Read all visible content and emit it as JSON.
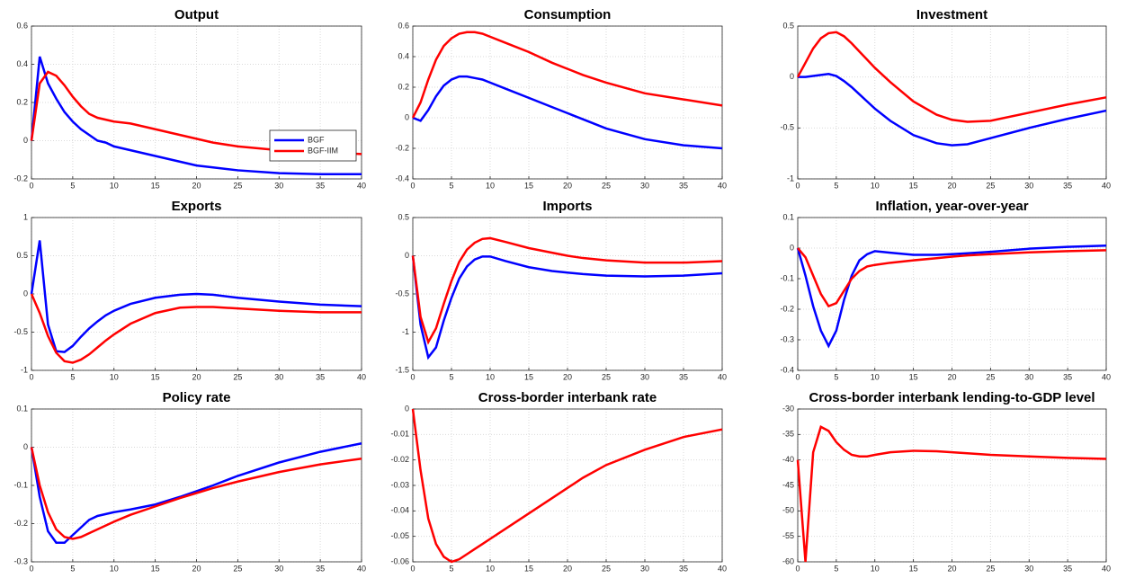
{
  "chart_data": [
    {
      "type": "line",
      "title": "Output",
      "legend": "lower right",
      "grid": true,
      "x": [
        0,
        1,
        2,
        3,
        4,
        5,
        6,
        7,
        8,
        9,
        10,
        12,
        15,
        18,
        20,
        22,
        25,
        30,
        35,
        40
      ],
      "xlim": [
        0,
        40
      ],
      "xticks": [
        0,
        5,
        10,
        15,
        20,
        25,
        30,
        35,
        40
      ],
      "ylim": [
        -0.2,
        0.6
      ],
      "yticks": [
        -0.2,
        0,
        0.2,
        0.4,
        0.6
      ],
      "series": [
        {
          "name": "BGF",
          "color": "#0000ff",
          "values": [
            0,
            0.44,
            0.3,
            0.22,
            0.15,
            0.1,
            0.06,
            0.03,
            0.0,
            -0.01,
            -0.03,
            -0.05,
            -0.08,
            -0.11,
            -0.13,
            -0.14,
            -0.155,
            -0.17,
            -0.175,
            -0.175
          ]
        },
        {
          "name": "BGF-IIM",
          "color": "#ff0000",
          "values": [
            0,
            0.3,
            0.36,
            0.34,
            0.29,
            0.23,
            0.18,
            0.14,
            0.12,
            0.11,
            0.1,
            0.09,
            0.06,
            0.03,
            0.01,
            -0.01,
            -0.03,
            -0.05,
            -0.06,
            -0.07
          ]
        }
      ]
    },
    {
      "type": "line",
      "title": "Consumption",
      "grid": true,
      "x": [
        0,
        1,
        2,
        3,
        4,
        5,
        6,
        7,
        8,
        9,
        10,
        12,
        15,
        18,
        20,
        22,
        25,
        30,
        35,
        40
      ],
      "xlim": [
        0,
        40
      ],
      "xticks": [
        0,
        5,
        10,
        15,
        20,
        25,
        30,
        35,
        40
      ],
      "ylim": [
        -0.4,
        0.6
      ],
      "yticks": [
        -0.4,
        -0.2,
        0,
        0.2,
        0.4,
        0.6
      ],
      "series": [
        {
          "color": "#0000ff",
          "values": [
            0,
            -0.02,
            0.05,
            0.14,
            0.21,
            0.25,
            0.27,
            0.27,
            0.26,
            0.25,
            0.23,
            0.19,
            0.13,
            0.07,
            0.03,
            -0.01,
            -0.07,
            -0.14,
            -0.18,
            -0.2
          ]
        },
        {
          "color": "#ff0000",
          "values": [
            0,
            0.1,
            0.25,
            0.38,
            0.47,
            0.52,
            0.55,
            0.56,
            0.56,
            0.55,
            0.53,
            0.49,
            0.43,
            0.36,
            0.32,
            0.28,
            0.23,
            0.16,
            0.12,
            0.08
          ]
        }
      ]
    },
    {
      "type": "line",
      "title": "Investment",
      "grid": true,
      "x": [
        0,
        1,
        2,
        3,
        4,
        5,
        6,
        7,
        8,
        9,
        10,
        12,
        15,
        18,
        20,
        22,
        25,
        30,
        35,
        40
      ],
      "xlim": [
        0,
        40
      ],
      "xticks": [
        0,
        5,
        10,
        15,
        20,
        25,
        30,
        35,
        40
      ],
      "ylim": [
        -1,
        0.5
      ],
      "yticks": [
        -1,
        -0.5,
        0,
        0.5
      ],
      "series": [
        {
          "color": "#0000ff",
          "values": [
            0,
            0,
            0.01,
            0.02,
            0.03,
            0.01,
            -0.04,
            -0.1,
            -0.17,
            -0.24,
            -0.31,
            -0.43,
            -0.57,
            -0.65,
            -0.67,
            -0.66,
            -0.6,
            -0.5,
            -0.41,
            -0.33
          ]
        },
        {
          "color": "#ff0000",
          "values": [
            0,
            0.14,
            0.28,
            0.38,
            0.43,
            0.44,
            0.4,
            0.33,
            0.25,
            0.17,
            0.09,
            -0.05,
            -0.24,
            -0.37,
            -0.42,
            -0.44,
            -0.43,
            -0.35,
            -0.27,
            -0.2
          ]
        }
      ]
    },
    {
      "type": "line",
      "title": "Exports",
      "grid": true,
      "x": [
        0,
        1,
        2,
        3,
        4,
        5,
        6,
        7,
        8,
        9,
        10,
        12,
        15,
        18,
        20,
        22,
        25,
        30,
        35,
        40
      ],
      "xlim": [
        0,
        40
      ],
      "xticks": [
        0,
        5,
        10,
        15,
        20,
        25,
        30,
        35,
        40
      ],
      "ylim": [
        -1,
        1
      ],
      "yticks": [
        -1,
        -0.5,
        0,
        0.5,
        1
      ],
      "series": [
        {
          "color": "#0000ff",
          "values": [
            0,
            0.7,
            -0.4,
            -0.75,
            -0.76,
            -0.68,
            -0.56,
            -0.45,
            -0.36,
            -0.28,
            -0.22,
            -0.13,
            -0.05,
            -0.01,
            0,
            -0.01,
            -0.05,
            -0.1,
            -0.14,
            -0.16
          ]
        },
        {
          "color": "#ff0000",
          "values": [
            0,
            -0.25,
            -0.55,
            -0.77,
            -0.88,
            -0.9,
            -0.86,
            -0.79,
            -0.7,
            -0.61,
            -0.53,
            -0.39,
            -0.25,
            -0.18,
            -0.17,
            -0.17,
            -0.19,
            -0.22,
            -0.24,
            -0.24
          ]
        }
      ]
    },
    {
      "type": "line",
      "title": "Imports",
      "grid": true,
      "x": [
        0,
        1,
        2,
        3,
        4,
        5,
        6,
        7,
        8,
        9,
        10,
        12,
        15,
        18,
        20,
        22,
        25,
        30,
        35,
        40
      ],
      "xlim": [
        0,
        40
      ],
      "xticks": [
        0,
        5,
        10,
        15,
        20,
        25,
        30,
        35,
        40
      ],
      "ylim": [
        -1.5,
        0.5
      ],
      "yticks": [
        -1.5,
        -1,
        -0.5,
        0,
        0.5
      ],
      "series": [
        {
          "color": "#0000ff",
          "values": [
            0,
            -0.9,
            -1.33,
            -1.2,
            -0.85,
            -0.55,
            -0.3,
            -0.14,
            -0.05,
            -0.01,
            -0.01,
            -0.07,
            -0.15,
            -0.2,
            -0.22,
            -0.24,
            -0.26,
            -0.27,
            -0.26,
            -0.23
          ]
        },
        {
          "color": "#ff0000",
          "values": [
            0,
            -0.8,
            -1.13,
            -0.95,
            -0.63,
            -0.33,
            -0.08,
            0.08,
            0.17,
            0.22,
            0.23,
            0.18,
            0.1,
            0.04,
            0.0,
            -0.03,
            -0.06,
            -0.09,
            -0.09,
            -0.07
          ]
        }
      ]
    },
    {
      "type": "line",
      "title": "Inflation, year-over-year",
      "grid": true,
      "x": [
        0,
        1,
        2,
        3,
        4,
        5,
        6,
        7,
        8,
        9,
        10,
        12,
        15,
        18,
        20,
        22,
        25,
        30,
        35,
        40
      ],
      "xlim": [
        0,
        40
      ],
      "xticks": [
        0,
        5,
        10,
        15,
        20,
        25,
        30,
        35,
        40
      ],
      "ylim": [
        -0.4,
        0.1
      ],
      "yticks": [
        -0.4,
        -0.3,
        -0.2,
        -0.1,
        0,
        0.1
      ],
      "series": [
        {
          "color": "#0000ff",
          "values": [
            0,
            -0.09,
            -0.19,
            -0.27,
            -0.32,
            -0.27,
            -0.17,
            -0.09,
            -0.04,
            -0.02,
            -0.01,
            -0.015,
            -0.022,
            -0.022,
            -0.02,
            -0.017,
            -0.012,
            -0.002,
            0.004,
            0.008
          ]
        },
        {
          "color": "#ff0000",
          "values": [
            0,
            -0.03,
            -0.09,
            -0.15,
            -0.19,
            -0.18,
            -0.14,
            -0.1,
            -0.075,
            -0.06,
            -0.055,
            -0.048,
            -0.04,
            -0.033,
            -0.028,
            -0.024,
            -0.02,
            -0.014,
            -0.01,
            -0.007
          ]
        }
      ]
    },
    {
      "type": "line",
      "title": "Policy rate",
      "grid": true,
      "x": [
        0,
        1,
        2,
        3,
        4,
        5,
        6,
        7,
        8,
        9,
        10,
        12,
        15,
        18,
        20,
        22,
        25,
        30,
        35,
        40
      ],
      "xlim": [
        0,
        40
      ],
      "xticks": [
        0,
        5,
        10,
        15,
        20,
        25,
        30,
        35,
        40
      ],
      "ylim": [
        -0.3,
        0.1
      ],
      "yticks": [
        -0.3,
        -0.2,
        -0.1,
        0,
        0.1
      ],
      "series": [
        {
          "color": "#0000ff",
          "values": [
            0,
            -0.13,
            -0.22,
            -0.25,
            -0.25,
            -0.23,
            -0.21,
            -0.19,
            -0.18,
            -0.175,
            -0.17,
            -0.163,
            -0.15,
            -0.13,
            -0.115,
            -0.1,
            -0.075,
            -0.04,
            -0.012,
            0.01
          ]
        },
        {
          "color": "#ff0000",
          "values": [
            0,
            -0.1,
            -0.17,
            -0.215,
            -0.235,
            -0.24,
            -0.235,
            -0.225,
            -0.215,
            -0.205,
            -0.195,
            -0.177,
            -0.155,
            -0.133,
            -0.12,
            -0.107,
            -0.09,
            -0.065,
            -0.045,
            -0.03
          ]
        }
      ]
    },
    {
      "type": "line",
      "title": "Cross-border interbank rate",
      "grid": true,
      "x": [
        0,
        1,
        2,
        3,
        4,
        5,
        6,
        7,
        8,
        9,
        10,
        12,
        15,
        18,
        20,
        22,
        25,
        30,
        35,
        40
      ],
      "xlim": [
        0,
        40
      ],
      "xticks": [
        0,
        5,
        10,
        15,
        20,
        25,
        30,
        35,
        40
      ],
      "ylim": [
        -0.06,
        0
      ],
      "yticks": [
        -0.06,
        -0.05,
        -0.04,
        -0.03,
        -0.02,
        -0.01,
        0
      ],
      "series": [
        {
          "color": "#ff0000",
          "values": [
            0,
            -0.024,
            -0.043,
            -0.053,
            -0.058,
            -0.06,
            -0.059,
            -0.057,
            -0.055,
            -0.053,
            -0.051,
            -0.047,
            -0.041,
            -0.035,
            -0.031,
            -0.027,
            -0.022,
            -0.016,
            -0.011,
            -0.008
          ]
        }
      ]
    },
    {
      "type": "line",
      "title": "Cross-border interbank lending-to-GDP level",
      "grid": true,
      "x": [
        0,
        1,
        2,
        3,
        4,
        5,
        6,
        7,
        8,
        9,
        10,
        12,
        15,
        18,
        20,
        22,
        25,
        30,
        35,
        40
      ],
      "xlim": [
        0,
        40
      ],
      "xticks": [
        0,
        5,
        10,
        15,
        20,
        25,
        30,
        35,
        40
      ],
      "ylim": [
        -60,
        -30
      ],
      "yticks": [
        -60,
        -55,
        -50,
        -45,
        -40,
        -35,
        -30
      ],
      "series": [
        {
          "color": "#ff0000",
          "values": [
            -40,
            -60,
            -38.5,
            -33.5,
            -34.3,
            -36.5,
            -38,
            -39,
            -39.3,
            -39.3,
            -39,
            -38.5,
            -38.2,
            -38.3,
            -38.5,
            -38.7,
            -39,
            -39.3,
            -39.6,
            -39.8
          ]
        }
      ]
    }
  ]
}
